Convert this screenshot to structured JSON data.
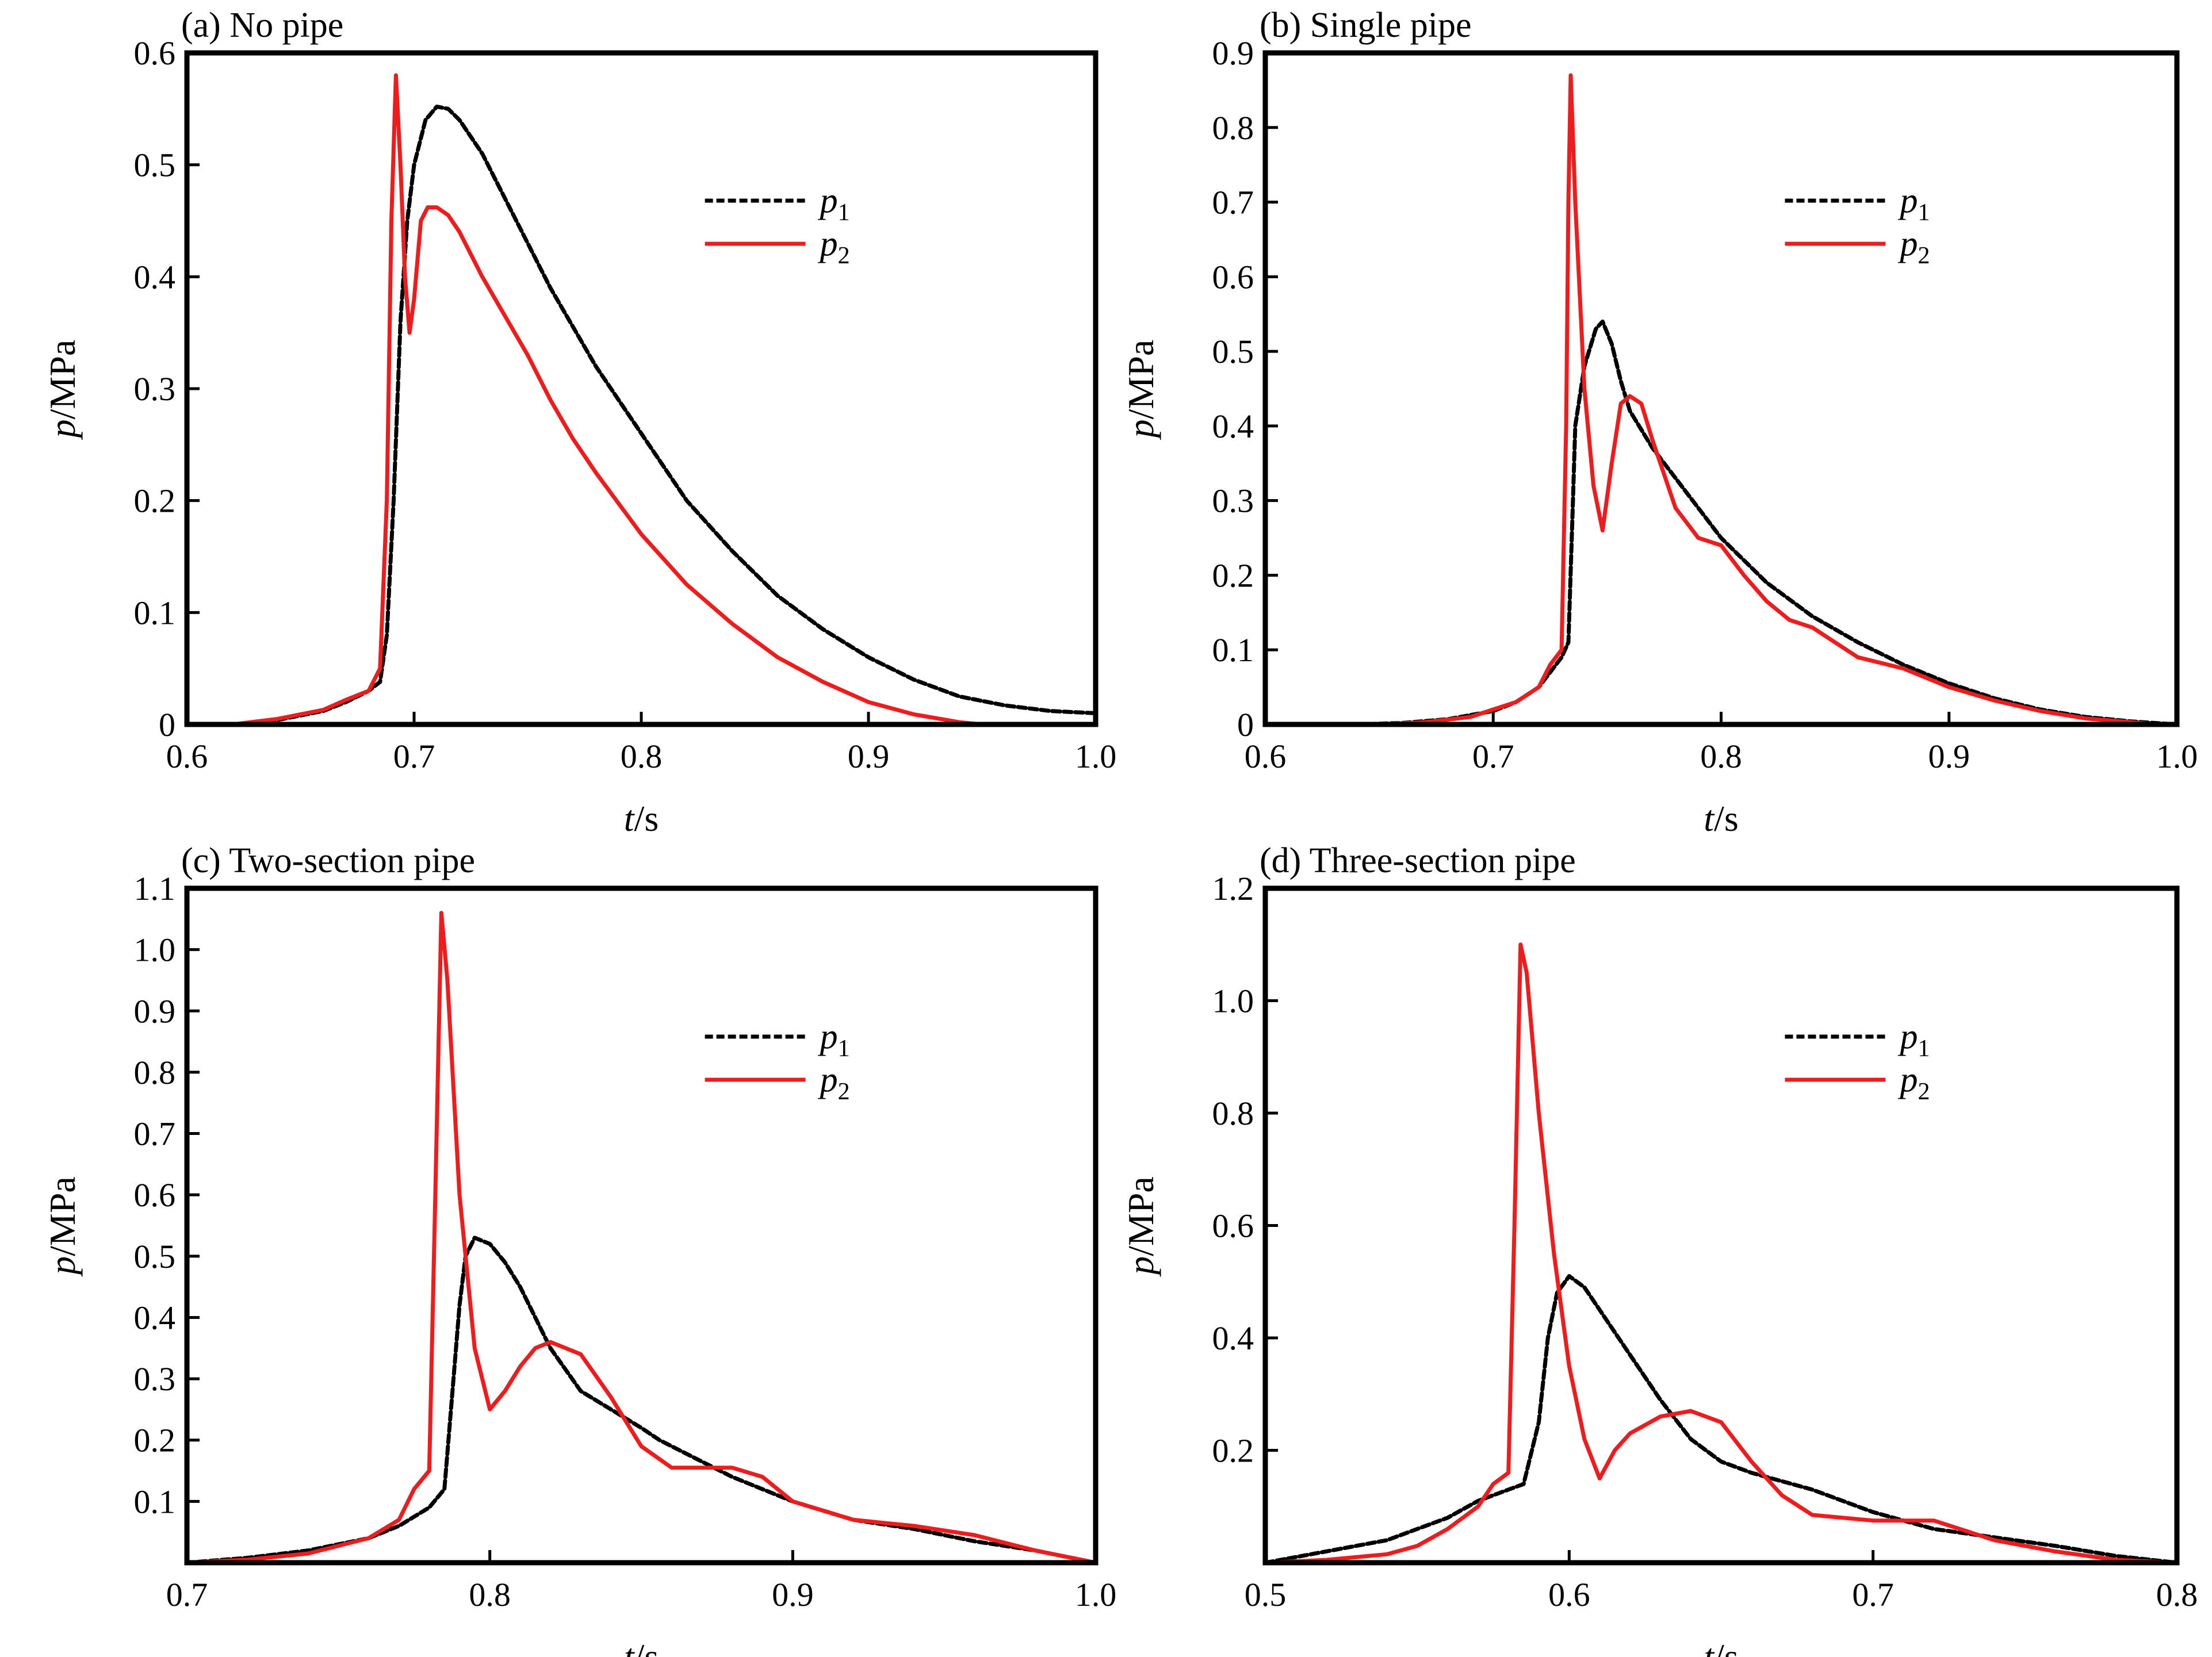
{
  "colors": {
    "p1": "#000000",
    "p2": "#ee1c1c"
  },
  "chart_data": [
    {
      "type": "line",
      "title": "(a) No pipe",
      "xlabel": "t/s",
      "ylabel": "p/MPa",
      "xlim": [
        0.6,
        1.0
      ],
      "ylim": [
        0,
        0.6
      ],
      "xticks": [
        0.6,
        0.7,
        0.8,
        0.9,
        1.0
      ],
      "xtick_labels": [
        "0.6",
        "0.7",
        "0.8",
        "0.9",
        "1.0"
      ],
      "yticks": [
        0,
        0.1,
        0.2,
        0.3,
        0.4,
        0.5,
        0.6
      ],
      "ytick_labels": [
        "0",
        "0.1",
        "0.2",
        "0.3",
        "0.4",
        "0.5",
        "0.6"
      ],
      "legend_position": "upper-right",
      "series": [
        {
          "name": "p1",
          "sub": "1",
          "style": "dashed",
          "x": [
            0.62,
            0.64,
            0.66,
            0.67,
            0.68,
            0.685,
            0.688,
            0.691,
            0.694,
            0.697,
            0.7,
            0.705,
            0.71,
            0.715,
            0.72,
            0.73,
            0.74,
            0.75,
            0.76,
            0.77,
            0.78,
            0.8,
            0.82,
            0.84,
            0.86,
            0.88,
            0.9,
            0.92,
            0.94,
            0.96,
            0.98,
            1.0
          ],
          "y": [
            0.0,
            0.004,
            0.012,
            0.02,
            0.03,
            0.038,
            0.08,
            0.2,
            0.36,
            0.45,
            0.5,
            0.54,
            0.552,
            0.55,
            0.54,
            0.51,
            0.47,
            0.43,
            0.39,
            0.355,
            0.32,
            0.26,
            0.2,
            0.155,
            0.115,
            0.085,
            0.06,
            0.04,
            0.025,
            0.017,
            0.012,
            0.01
          ]
        },
        {
          "name": "p2",
          "sub": "2",
          "style": "solid",
          "x": [
            0.62,
            0.64,
            0.66,
            0.67,
            0.68,
            0.685,
            0.688,
            0.69,
            0.692,
            0.694,
            0.696,
            0.698,
            0.7,
            0.703,
            0.706,
            0.71,
            0.715,
            0.72,
            0.73,
            0.74,
            0.75,
            0.76,
            0.77,
            0.78,
            0.8,
            0.82,
            0.84,
            0.86,
            0.88,
            0.9,
            0.92,
            0.94,
            0.95
          ],
          "y": [
            0.0,
            0.005,
            0.013,
            0.022,
            0.03,
            0.05,
            0.2,
            0.45,
            0.58,
            0.5,
            0.4,
            0.35,
            0.38,
            0.45,
            0.462,
            0.462,
            0.455,
            0.44,
            0.4,
            0.365,
            0.33,
            0.29,
            0.255,
            0.225,
            0.17,
            0.125,
            0.09,
            0.06,
            0.038,
            0.02,
            0.009,
            0.002,
            0.0
          ]
        }
      ]
    },
    {
      "type": "line",
      "title": "(b) Single pipe",
      "xlabel": "t/s",
      "ylabel": "p/MPa",
      "xlim": [
        0.6,
        1.0
      ],
      "ylim": [
        0,
        0.9
      ],
      "xticks": [
        0.6,
        0.7,
        0.8,
        0.9,
        1.0
      ],
      "xtick_labels": [
        "0.6",
        "0.7",
        "0.8",
        "0.9",
        "1.0"
      ],
      "yticks": [
        0,
        0.1,
        0.2,
        0.3,
        0.4,
        0.5,
        0.6,
        0.7,
        0.8,
        0.9
      ],
      "ytick_labels": [
        "0",
        "0.1",
        "0.2",
        "0.3",
        "0.4",
        "0.5",
        "0.6",
        "0.7",
        "0.8",
        "0.9"
      ],
      "legend_position": "upper-right",
      "series": [
        {
          "name": "p1",
          "sub": "1",
          "style": "dashed",
          "x": [
            0.64,
            0.66,
            0.68,
            0.7,
            0.71,
            0.72,
            0.725,
            0.73,
            0.733,
            0.735,
            0.736,
            0.74,
            0.745,
            0.748,
            0.752,
            0.756,
            0.76,
            0.77,
            0.78,
            0.79,
            0.8,
            0.82,
            0.84,
            0.86,
            0.88,
            0.9,
            0.92,
            0.94,
            0.96,
            0.98,
            1.0
          ],
          "y": [
            0.0,
            0.002,
            0.007,
            0.018,
            0.03,
            0.05,
            0.07,
            0.09,
            0.11,
            0.3,
            0.4,
            0.48,
            0.53,
            0.54,
            0.51,
            0.46,
            0.42,
            0.37,
            0.33,
            0.29,
            0.25,
            0.19,
            0.145,
            0.11,
            0.08,
            0.055,
            0.035,
            0.02,
            0.01,
            0.004,
            0.0
          ]
        },
        {
          "name": "p2",
          "sub": "2",
          "style": "solid",
          "x": [
            0.65,
            0.67,
            0.69,
            0.71,
            0.72,
            0.725,
            0.73,
            0.732,
            0.733,
            0.734,
            0.736,
            0.74,
            0.744,
            0.748,
            0.752,
            0.756,
            0.76,
            0.765,
            0.77,
            0.78,
            0.79,
            0.8,
            0.81,
            0.82,
            0.83,
            0.84,
            0.86,
            0.88,
            0.9,
            0.92,
            0.94,
            0.96,
            0.98,
            0.99
          ],
          "y": [
            0.0,
            0.003,
            0.01,
            0.03,
            0.05,
            0.08,
            0.1,
            0.4,
            0.7,
            0.87,
            0.7,
            0.45,
            0.32,
            0.26,
            0.35,
            0.43,
            0.44,
            0.43,
            0.38,
            0.29,
            0.25,
            0.24,
            0.2,
            0.165,
            0.14,
            0.13,
            0.09,
            0.075,
            0.05,
            0.032,
            0.018,
            0.008,
            0.003,
            0.0
          ]
        }
      ]
    },
    {
      "type": "line",
      "title": "(c) Two-section pipe",
      "xlabel": "t/s",
      "ylabel": "p/MPa",
      "xlim": [
        0.7,
        1.0
      ],
      "ylim": [
        0,
        1.1
      ],
      "xticks": [
        0.7,
        0.8,
        0.9,
        1.0
      ],
      "xtick_labels": [
        "0.7",
        "0.8",
        "0.9",
        "1.0"
      ],
      "yticks": [
        0.1,
        0.2,
        0.3,
        0.4,
        0.5,
        0.6,
        0.7,
        0.8,
        0.9,
        1.0,
        1.1
      ],
      "ytick_labels": [
        "0.1",
        "0.2",
        "0.3",
        "0.4",
        "0.5",
        "0.6",
        "0.7",
        "0.8",
        "0.9",
        "1.0",
        "1.1"
      ],
      "legend_position": "upper-right",
      "series": [
        {
          "name": "p1",
          "sub": "1",
          "style": "dashed",
          "x": [
            0.7,
            0.72,
            0.74,
            0.76,
            0.77,
            0.78,
            0.785,
            0.788,
            0.79,
            0.792,
            0.795,
            0.8,
            0.805,
            0.81,
            0.815,
            0.82,
            0.83,
            0.84,
            0.85,
            0.856,
            0.86,
            0.87,
            0.88,
            0.9,
            0.92,
            0.94,
            0.96,
            0.98,
            1.0
          ],
          "y": [
            0.0,
            0.008,
            0.02,
            0.04,
            0.06,
            0.09,
            0.12,
            0.3,
            0.42,
            0.5,
            0.53,
            0.52,
            0.49,
            0.45,
            0.4,
            0.35,
            0.28,
            0.25,
            0.22,
            0.2,
            0.19,
            0.165,
            0.14,
            0.1,
            0.07,
            0.055,
            0.035,
            0.02,
            0.0
          ]
        },
        {
          "name": "p2",
          "sub": "2",
          "style": "solid",
          "x": [
            0.7,
            0.72,
            0.74,
            0.76,
            0.77,
            0.775,
            0.78,
            0.782,
            0.784,
            0.786,
            0.79,
            0.795,
            0.8,
            0.805,
            0.81,
            0.815,
            0.82,
            0.83,
            0.84,
            0.85,
            0.86,
            0.87,
            0.88,
            0.89,
            0.9,
            0.92,
            0.94,
            0.96,
            0.98,
            1.0
          ],
          "y": [
            0.0,
            0.005,
            0.015,
            0.04,
            0.07,
            0.12,
            0.15,
            0.6,
            1.06,
            0.95,
            0.6,
            0.35,
            0.25,
            0.28,
            0.32,
            0.35,
            0.36,
            0.34,
            0.27,
            0.19,
            0.155,
            0.155,
            0.155,
            0.14,
            0.1,
            0.07,
            0.06,
            0.045,
            0.02,
            0.0
          ]
        }
      ]
    },
    {
      "type": "line",
      "title": "(d) Three-section pipe",
      "xlabel": "t/s",
      "ylabel": "p/MPa",
      "xlim": [
        0.5,
        0.8
      ],
      "ylim": [
        0,
        1.2
      ],
      "xticks": [
        0.5,
        0.6,
        0.7,
        0.8
      ],
      "xtick_labels": [
        "0.5",
        "0.6",
        "0.7",
        "0.8"
      ],
      "yticks": [
        0.2,
        0.4,
        0.6,
        0.8,
        1.0,
        1.2
      ],
      "ytick_labels": [
        "0.2",
        "0.4",
        "0.6",
        "0.8",
        "1.0",
        "1.2"
      ],
      "legend_position": "upper-right",
      "series": [
        {
          "name": "p1",
          "sub": "1",
          "style": "dashed",
          "x": [
            0.5,
            0.52,
            0.54,
            0.56,
            0.57,
            0.58,
            0.585,
            0.59,
            0.593,
            0.596,
            0.6,
            0.605,
            0.61,
            0.62,
            0.63,
            0.64,
            0.65,
            0.66,
            0.68,
            0.7,
            0.72,
            0.74,
            0.76,
            0.78,
            0.8
          ],
          "y": [
            0.0,
            0.02,
            0.04,
            0.08,
            0.11,
            0.13,
            0.14,
            0.25,
            0.4,
            0.48,
            0.51,
            0.49,
            0.45,
            0.37,
            0.29,
            0.22,
            0.18,
            0.16,
            0.13,
            0.09,
            0.06,
            0.045,
            0.03,
            0.012,
            0.0
          ]
        },
        {
          "name": "p2",
          "sub": "2",
          "style": "solid",
          "x": [
            0.5,
            0.52,
            0.54,
            0.55,
            0.56,
            0.57,
            0.575,
            0.58,
            0.582,
            0.584,
            0.586,
            0.59,
            0.595,
            0.6,
            0.605,
            0.61,
            0.615,
            0.62,
            0.63,
            0.64,
            0.65,
            0.66,
            0.67,
            0.68,
            0.7,
            0.72,
            0.74,
            0.76,
            0.78,
            0.8
          ],
          "y": [
            0.0,
            0.005,
            0.015,
            0.03,
            0.06,
            0.1,
            0.14,
            0.16,
            0.6,
            1.1,
            1.05,
            0.8,
            0.55,
            0.35,
            0.22,
            0.15,
            0.2,
            0.23,
            0.26,
            0.27,
            0.25,
            0.18,
            0.12,
            0.085,
            0.075,
            0.075,
            0.04,
            0.02,
            0.005,
            0.0
          ]
        }
      ]
    }
  ]
}
